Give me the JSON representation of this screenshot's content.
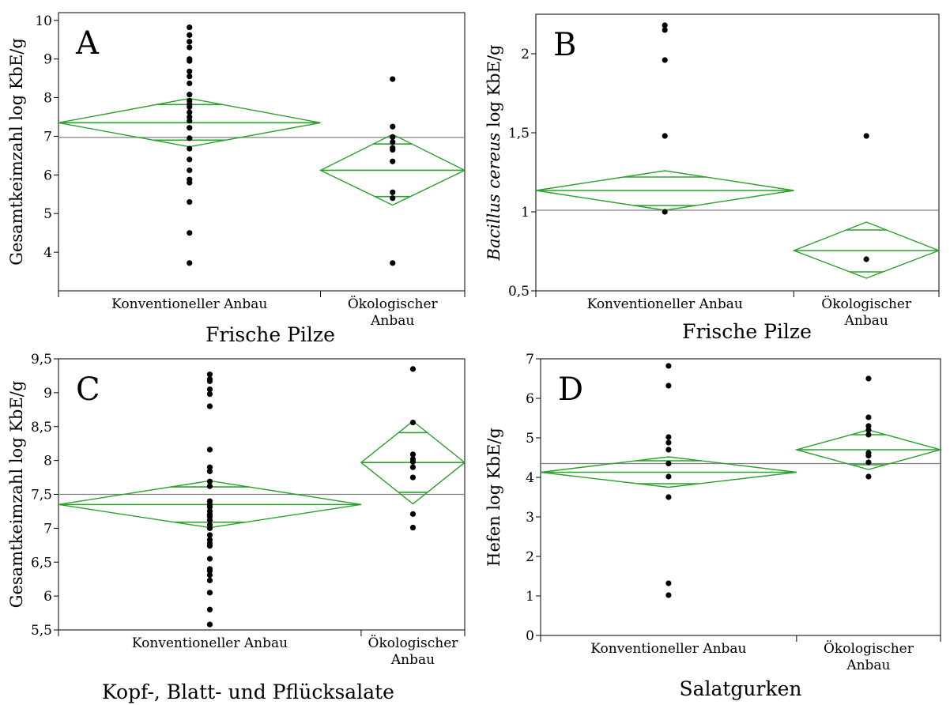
{
  "colors": {
    "diamond": "#2ca02c",
    "grand_mean": "#808080",
    "points": "#000000",
    "frame": "#000000"
  },
  "chart_data": [
    {
      "type": "scatter",
      "panel_label": "A",
      "xlabel": "Frische Pilze",
      "ylabel": "Gesamtkeimzahl log KbE/g",
      "ylabel_italic": "",
      "ylabel_rest": "",
      "ylim": [
        3.0,
        10.2
      ],
      "yticks": [
        4,
        5,
        6,
        7,
        8,
        9,
        10
      ],
      "yticklabels": [
        "4",
        "5",
        "6",
        "7",
        "8",
        "9",
        "10"
      ],
      "grand_mean": 6.97,
      "categories": [
        {
          "label_lines": [
            "Konventioneller Anbau"
          ],
          "share": 0.645,
          "mean": 7.35,
          "ci": [
            6.73,
            7.98
          ],
          "ci_inner": [
            6.9,
            7.82
          ],
          "points": [
            9.82,
            9.62,
            9.45,
            9.3,
            9.0,
            8.95,
            8.68,
            8.55,
            8.37,
            8.08,
            7.92,
            7.83,
            7.76,
            7.62,
            7.5,
            7.4,
            7.22,
            6.95,
            6.68,
            6.4,
            6.12,
            5.88,
            5.8,
            5.3,
            4.5,
            3.72
          ]
        },
        {
          "label_lines": [
            "Ökologischer",
            "Anbau"
          ],
          "share": 0.355,
          "mean": 6.12,
          "ci": [
            5.22,
            7.05
          ],
          "ci_inner": [
            5.44,
            6.8
          ],
          "points": [
            8.48,
            7.25,
            6.98,
            6.85,
            6.7,
            6.65,
            6.35,
            5.55,
            5.4,
            3.72
          ]
        }
      ]
    },
    {
      "type": "scatter",
      "panel_label": "B",
      "xlabel": "Frische Pilze",
      "ylabel": "",
      "ylabel_italic": "Bacillus cereus",
      "ylabel_rest": " log KbE/g",
      "ylim": [
        0.5,
        2.25
      ],
      "yticks": [
        0.5,
        1,
        1.5,
        2
      ],
      "yticklabels": [
        "0,5",
        "1",
        "1,5",
        "2"
      ],
      "grand_mean": 1.01,
      "categories": [
        {
          "label_lines": [
            "Konventioneller Anbau"
          ],
          "share": 0.64,
          "mean": 1.135,
          "ci": [
            1.01,
            1.26
          ],
          "ci_inner": [
            1.04,
            1.22
          ],
          "points": [
            2.18,
            2.15,
            1.96,
            1.48,
            1.0
          ]
        },
        {
          "label_lines": [
            "Ökologischer",
            "Anbau"
          ],
          "share": 0.36,
          "mean": 0.755,
          "ci": [
            0.58,
            0.935
          ],
          "ci_inner": [
            0.62,
            0.885
          ],
          "points": [
            1.48,
            0.7
          ]
        }
      ]
    },
    {
      "type": "scatter",
      "panel_label": "C",
      "xlabel": "Kopf-, Blatt- und Pflücksalate",
      "ylabel": "Gesamtkeimzahl log KbE/g",
      "ylabel_italic": "",
      "ylabel_rest": "",
      "ylim": [
        5.5,
        9.5
      ],
      "yticks": [
        5.5,
        6,
        6.5,
        7,
        7.5,
        8,
        8.5,
        9,
        9.5
      ],
      "yticklabels": [
        "5,5",
        "6",
        "6,5",
        "7",
        "7,5",
        "8",
        "8,5",
        "9",
        "9,5"
      ],
      "grand_mean": 7.5,
      "categories": [
        {
          "label_lines": [
            "Konventioneller Anbau"
          ],
          "share": 0.745,
          "mean": 7.35,
          "ci": [
            7.01,
            7.7
          ],
          "ci_inner": [
            7.09,
            7.61
          ],
          "points": [
            9.27,
            9.2,
            9.17,
            9.05,
            8.98,
            8.8,
            8.16,
            7.9,
            7.84,
            7.69,
            7.62,
            7.4,
            7.35,
            7.31,
            7.25,
            7.2,
            7.17,
            7.12,
            7.05,
            7.0,
            6.9,
            6.83,
            6.78,
            6.74,
            6.55,
            6.4,
            6.37,
            6.31,
            6.23,
            6.05,
            5.8,
            5.58
          ]
        },
        {
          "label_lines": [
            "Ökologischer",
            "Anbau"
          ],
          "share": 0.255,
          "mean": 7.97,
          "ci": [
            7.36,
            8.58
          ],
          "ci_inner": [
            7.53,
            8.41
          ],
          "points": [
            9.35,
            8.56,
            8.09,
            8.02,
            7.98,
            7.9,
            7.75,
            7.21,
            7.01
          ]
        }
      ]
    },
    {
      "type": "scatter",
      "panel_label": "D",
      "xlabel": "Salatgurken",
      "ylabel": "Hefen log KbE/g",
      "ylabel_italic": "",
      "ylabel_rest": "",
      "ylim": [
        0,
        7
      ],
      "yticks": [
        0,
        1,
        2,
        3,
        4,
        5,
        6,
        7
      ],
      "yticklabels": [
        "0",
        "1",
        "2",
        "3",
        "4",
        "5",
        "6",
        "7"
      ],
      "grand_mean": 4.35,
      "categories": [
        {
          "label_lines": [
            "Konventioneller Anbau"
          ],
          "share": 0.64,
          "mean": 4.13,
          "ci": [
            3.75,
            4.52
          ],
          "ci_inner": [
            3.84,
            4.42
          ],
          "points": [
            6.82,
            6.32,
            5.02,
            4.88,
            4.7,
            4.35,
            4.02,
            3.5,
            1.32,
            1.02
          ]
        },
        {
          "label_lines": [
            "Ökologischer",
            "Anbau"
          ],
          "share": 0.36,
          "mean": 4.7,
          "ci": [
            4.2,
            5.2
          ],
          "ci_inner": [
            4.32,
            5.08
          ],
          "points": [
            6.5,
            5.52,
            5.3,
            5.2,
            5.08,
            4.62,
            4.55,
            4.38,
            4.02
          ]
        }
      ]
    }
  ]
}
